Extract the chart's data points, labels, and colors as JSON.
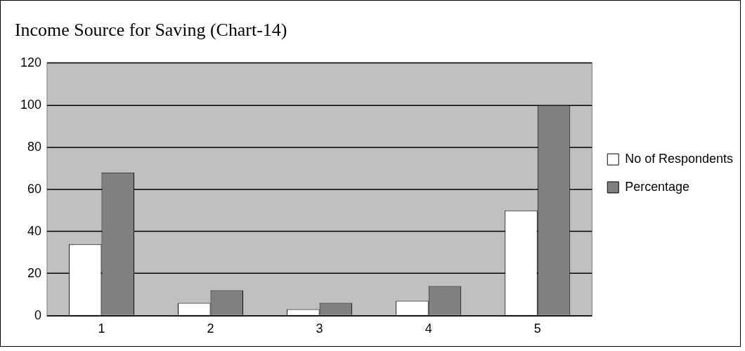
{
  "chart_data": {
    "type": "bar",
    "title": "Income Source for Saving (Chart-14)",
    "categories": [
      "1",
      "2",
      "3",
      "4",
      "5"
    ],
    "series": [
      {
        "name": "No of Respondents",
        "color": "#ffffff",
        "values": [
          34,
          6,
          3,
          7,
          50
        ]
      },
      {
        "name": "Percentage",
        "color": "#808080",
        "values": [
          68,
          12,
          6,
          14,
          100
        ]
      }
    ],
    "ylim": [
      0,
      120
    ],
    "yticks": [
      0,
      20,
      40,
      60,
      80,
      100,
      120
    ],
    "grid": "y",
    "legend": "right"
  }
}
